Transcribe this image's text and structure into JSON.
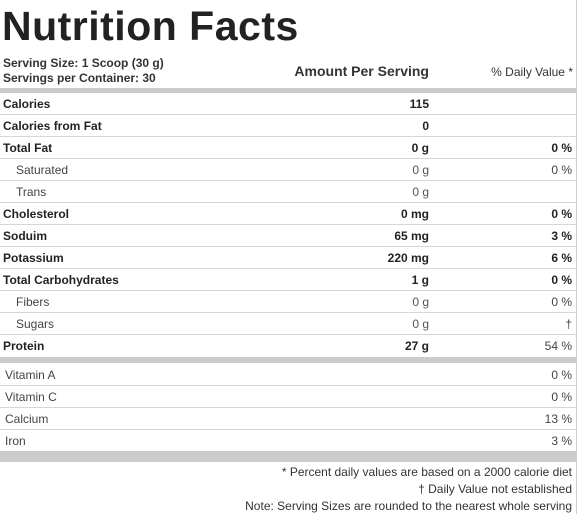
{
  "title": "Nutrition Facts",
  "serving": {
    "size": "Serving Size: 1 Scoop (30 g)",
    "per_container": "Servings per Container: 30"
  },
  "headers": {
    "amount": "Amount Per Serving",
    "daily_value": "% Daily Value *"
  },
  "nutrients": [
    {
      "label": "Calories",
      "amount": "115",
      "dv": ""
    },
    {
      "label": "Calories from Fat",
      "amount": "0",
      "dv": ""
    },
    {
      "label": "Total Fat",
      "amount": "0 g",
      "dv": "0 %"
    },
    {
      "label": "Saturated",
      "amount": "0 g",
      "dv": "0 %"
    },
    {
      "label": "Trans",
      "amount": "0 g",
      "dv": ""
    },
    {
      "label": "Cholesterol",
      "amount": "0 mg",
      "dv": "0 %"
    },
    {
      "label": "Soduim",
      "amount": "65 mg",
      "dv": "3 %"
    },
    {
      "label": "Potassium",
      "amount": "220 mg",
      "dv": "6 %"
    },
    {
      "label": "Total Carbohydrates",
      "amount": "1 g",
      "dv": "0 %"
    },
    {
      "label": "Fibers",
      "amount": "0 g",
      "dv": "0 %"
    },
    {
      "label": "Sugars",
      "amount": "0 g",
      "dv": "†"
    },
    {
      "label": "Protein",
      "amount": "27 g",
      "dv": "54 %"
    }
  ],
  "vitamins": [
    {
      "label": "Vitamin A",
      "dv": "0 %"
    },
    {
      "label": "Vitamin C",
      "dv": "0 %"
    },
    {
      "label": "Calcium",
      "dv": "13 %"
    },
    {
      "label": "Iron",
      "dv": "3 %"
    }
  ],
  "notes": [
    "* Percent daily values are based on a 2000 calorie diet",
    "† Daily Value not established",
    "Note: Serving Sizes are rounded to the nearest whole serving"
  ]
}
